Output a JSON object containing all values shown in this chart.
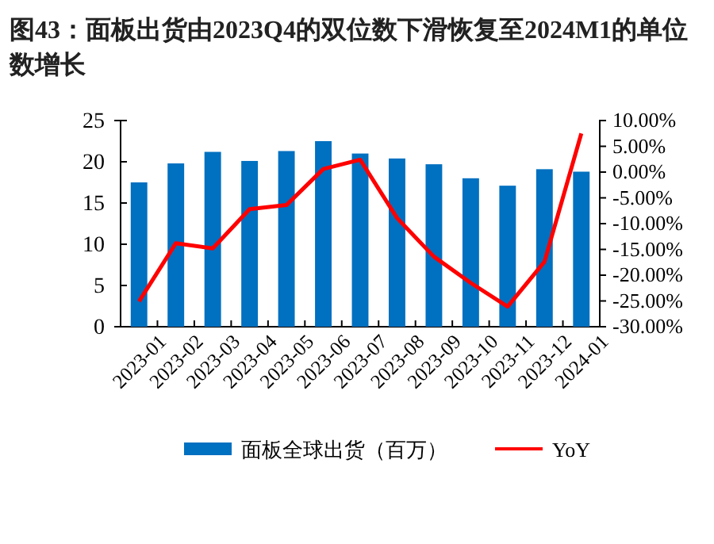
{
  "chart_data": {
    "type": "bar",
    "title": "图43：面板出货由2023Q4的双位数下滑恢复至2024M1的单位数增长",
    "categories": [
      "2023-01",
      "2023-02",
      "2023-03",
      "2023-04",
      "2023-05",
      "2023-06",
      "2023-07",
      "2023-08",
      "2023-09",
      "2023-10",
      "2023-11",
      "2023-12",
      "2024-01"
    ],
    "series": [
      {
        "name": "面板全球出货（百万）",
        "color": "#0070c0",
        "values": [
          17.5,
          19.8,
          21.2,
          20.1,
          21.3,
          22.5,
          21.0,
          20.4,
          19.7,
          18.0,
          17.1,
          19.1,
          18.8
        ]
      },
      {
        "name": "YoY",
        "type": "line",
        "axis": "y2",
        "color": "#ff0000",
        "values": [
          -25.1,
          -13.8,
          -14.8,
          -7.2,
          -6.4,
          0.6,
          2.4,
          -8.9,
          -16.4,
          -21.5,
          -26.1,
          -17.4,
          7.5
        ]
      }
    ],
    "ylim": [
      0,
      25
    ],
    "yticks": [
      0,
      5,
      10,
      15,
      20,
      25
    ],
    "y2lim": [
      -30,
      10
    ],
    "y2ticks": [
      {
        "value": -30,
        "label": "-30.00%"
      },
      {
        "value": -25,
        "label": "-25.00%"
      },
      {
        "value": -20,
        "label": "-20.00%"
      },
      {
        "value": -15,
        "label": "-15.00%"
      },
      {
        "value": -10,
        "label": "-10.00%"
      },
      {
        "value": -5,
        "label": "-5.00%"
      },
      {
        "value": 0,
        "label": "0.00%"
      },
      {
        "value": 5,
        "label": "5.00%"
      },
      {
        "value": 10,
        "label": "10.00%"
      }
    ],
    "grid": false,
    "legend": "bottom"
  }
}
